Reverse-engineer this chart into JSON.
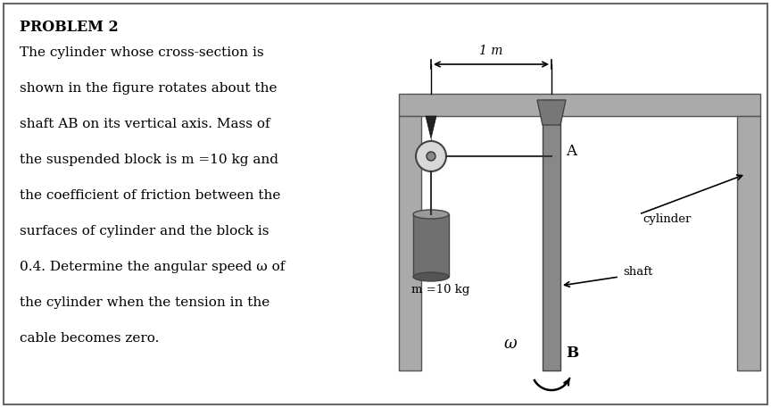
{
  "title": "PROBLEM 2",
  "problem_text": [
    "The cylinder whose cross-section is",
    "shown in the figure rotates about the",
    "shaft AB on its vertical axis. Mass of",
    "the suspended block is m =10 kg and",
    "the coefficient of friction between the",
    "surfaces of cylinder and the block is",
    "0.4. Determine the angular speed ω of",
    "the cylinder when the tension in the",
    "cable becomes zero."
  ],
  "bg_color": "#ffffff",
  "border_color": "#666666",
  "frame_color": "#aaaaaa",
  "shaft_color": "#888888",
  "block_color": "#707070",
  "block_top_color": "#999999",
  "text_color": "#000000",
  "dim_label": "1 m",
  "label_A": "A",
  "label_B": "B",
  "label_omega": "ω",
  "label_cylinder": "cylinder",
  "label_shaft": "shaft",
  "label_mass": "m =10 kg"
}
